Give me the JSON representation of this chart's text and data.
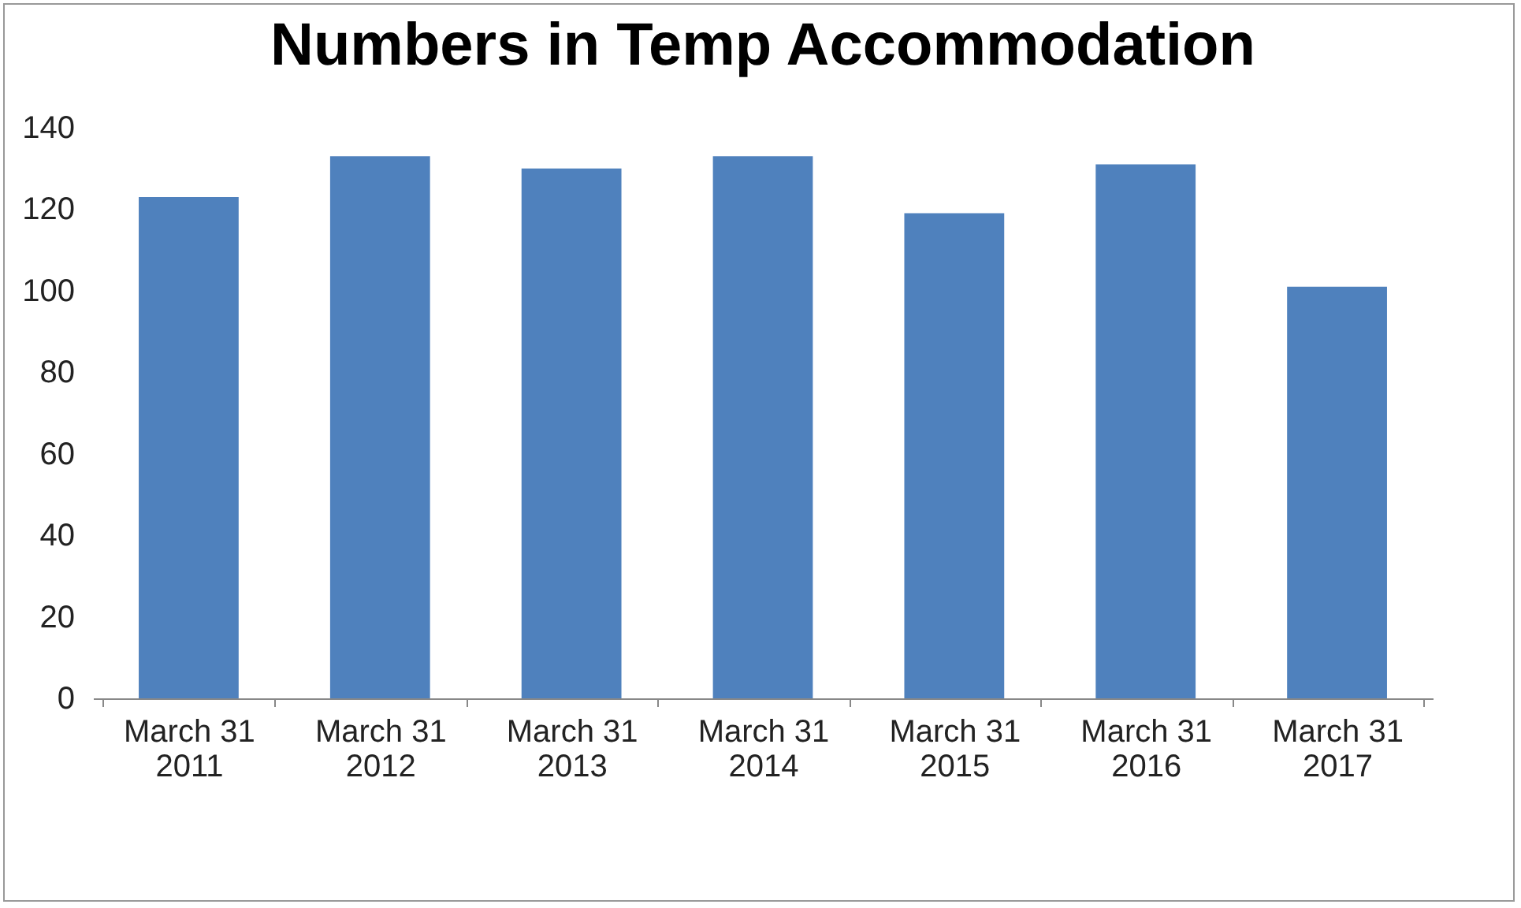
{
  "chart_data": {
    "type": "bar",
    "title": "Numbers in Temp Accommodation",
    "categories": [
      "March 31 2011",
      "March 31 2012",
      "March 31 2013",
      "March 31 2014",
      "March 31 2015",
      "March 31 2016",
      "March 31 2017"
    ],
    "values": [
      123,
      133,
      130,
      133,
      119,
      131,
      101
    ],
    "color": "#4f81bd",
    "ylim": [
      0,
      140
    ],
    "yticks": [
      0,
      20,
      40,
      60,
      80,
      100,
      120,
      140
    ],
    "grid": false
  }
}
